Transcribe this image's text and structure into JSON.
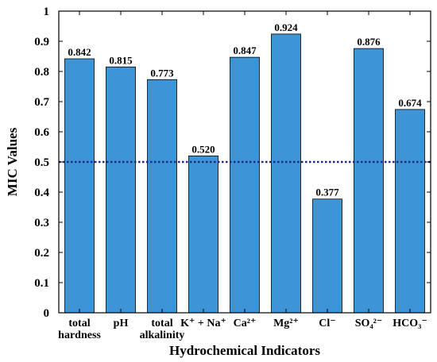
{
  "chart_data": {
    "type": "bar",
    "xlabel": "Hydrochemical Indicators",
    "ylabel": "MIC Values",
    "ylim": [
      0,
      1
    ],
    "yticks": [
      "0",
      "0.1",
      "0.2",
      "0.3",
      "0.4",
      "0.5",
      "0.6",
      "0.7",
      "0.8",
      "0.9",
      "1"
    ],
    "categories": [
      [
        "total",
        "hardness"
      ],
      [
        "pH"
      ],
      [
        "total",
        "alkalinity"
      ],
      [
        "K⁺ + Na⁺"
      ],
      [
        "Ca²⁺"
      ],
      [
        "Mg²⁺"
      ],
      [
        "Cl⁻"
      ],
      [
        "SO₄²⁻"
      ],
      [
        "HCO₃⁻"
      ]
    ],
    "values": [
      0.842,
      0.815,
      0.773,
      0.52,
      0.847,
      0.924,
      0.377,
      0.876,
      0.674
    ],
    "value_labels": [
      "0.842",
      "0.815",
      "0.773",
      "0.520",
      "0.847",
      "0.924",
      "0.377",
      "0.876",
      "0.674"
    ],
    "reference_line": {
      "y": 0.5,
      "style": "dotted"
    },
    "bar_color": "#3d95d6",
    "reference_color": "#1a2a8a",
    "grid": false,
    "legend": "none"
  }
}
